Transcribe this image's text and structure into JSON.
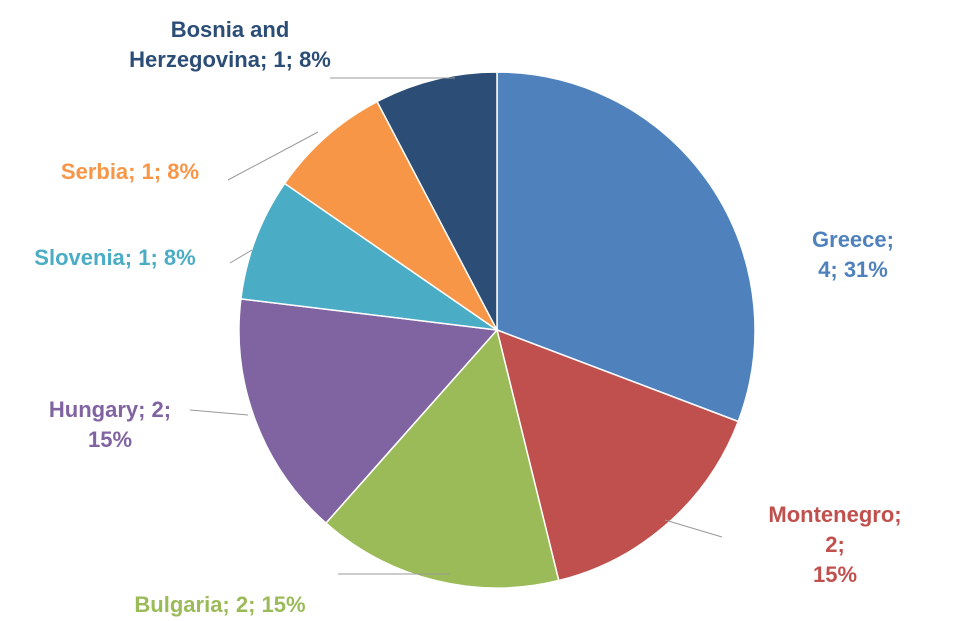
{
  "chart_data": {
    "type": "pie",
    "values": [
      4,
      2,
      2,
      2,
      1,
      1,
      1
    ],
    "value_labels": [
      "Greece; 4; 31%",
      "Montenegro; 2;\n15%",
      "Bulgaria; 2; 15%",
      "Hungary; 2;\n15%",
      "Slovenia; 1; 8%",
      "Serbia; 1; 8%",
      "Bosnia and\nHerzegovina; 1; 8%"
    ],
    "colors": [
      "#4f81bd",
      "#c0504d",
      "#9bbb59",
      "#8064a2",
      "#4bacc6",
      "#f79646",
      "#2c4d75"
    ]
  }
}
